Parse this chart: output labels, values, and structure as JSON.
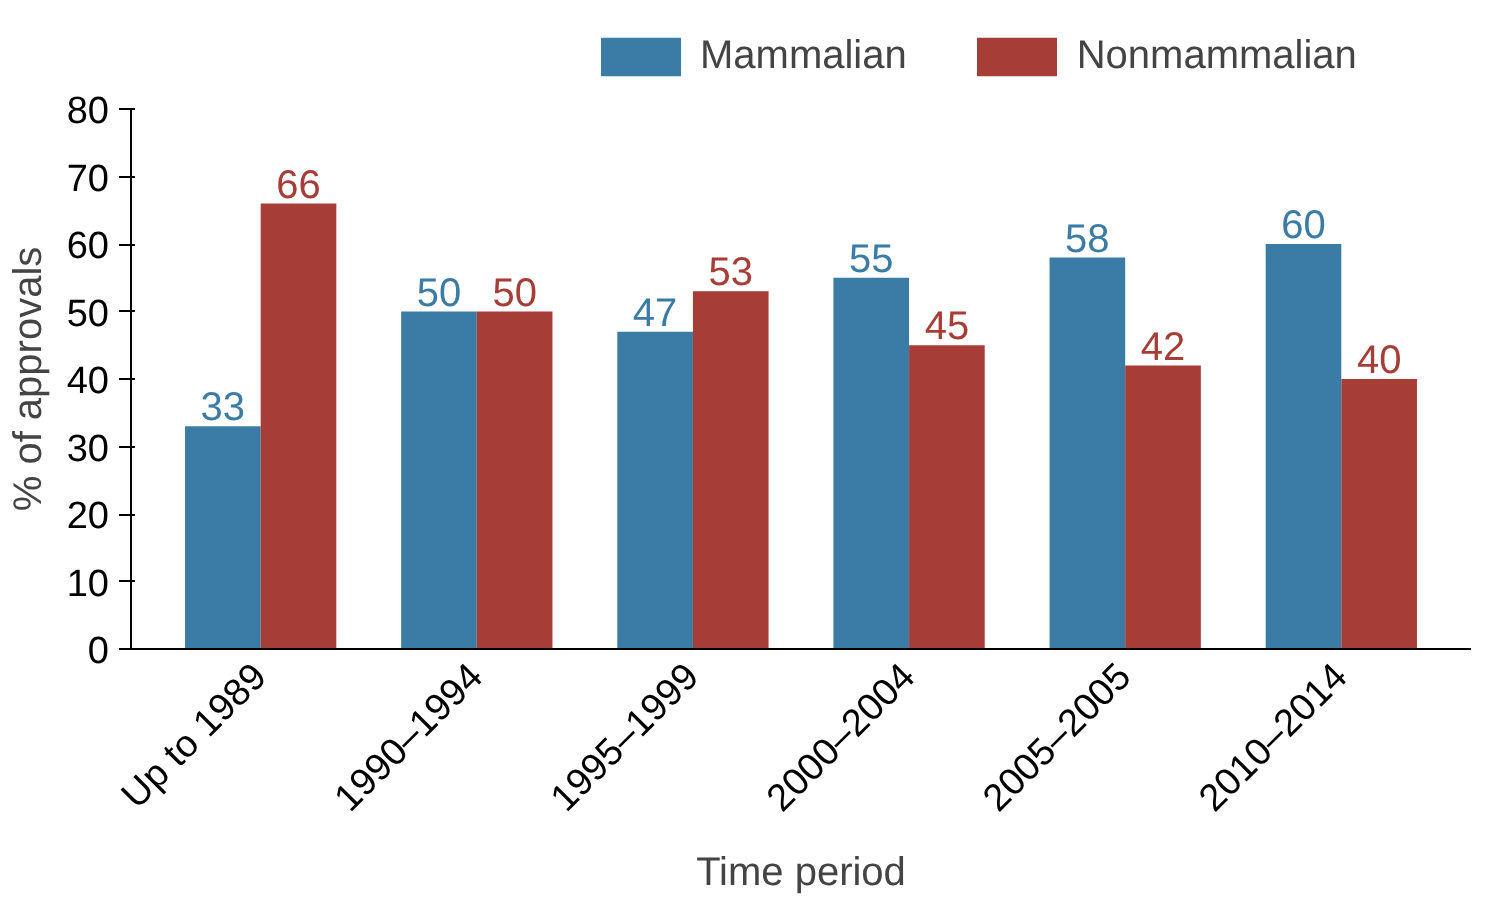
{
  "chart_data": {
    "type": "bar",
    "xlabel": "Time period",
    "ylabel": "% of approvals",
    "categories": [
      "Up to 1989",
      "1990–1994",
      "1995–1999",
      "2000–2004",
      "2005–2005",
      "2010–2014"
    ],
    "series": [
      {
        "name": "Mammalian",
        "color": "#3a7ca5",
        "values": [
          33,
          50,
          47,
          55,
          58,
          60
        ]
      },
      {
        "name": "Nonmammalian",
        "color": "#a63d36",
        "values": [
          66,
          50,
          53,
          45,
          42,
          40
        ]
      }
    ],
    "ylim": [
      0,
      80
    ],
    "yticks": [
      0,
      10,
      20,
      30,
      40,
      50,
      60,
      70,
      80
    ],
    "grid": false,
    "legend": "top",
    "data_labels": true
  }
}
